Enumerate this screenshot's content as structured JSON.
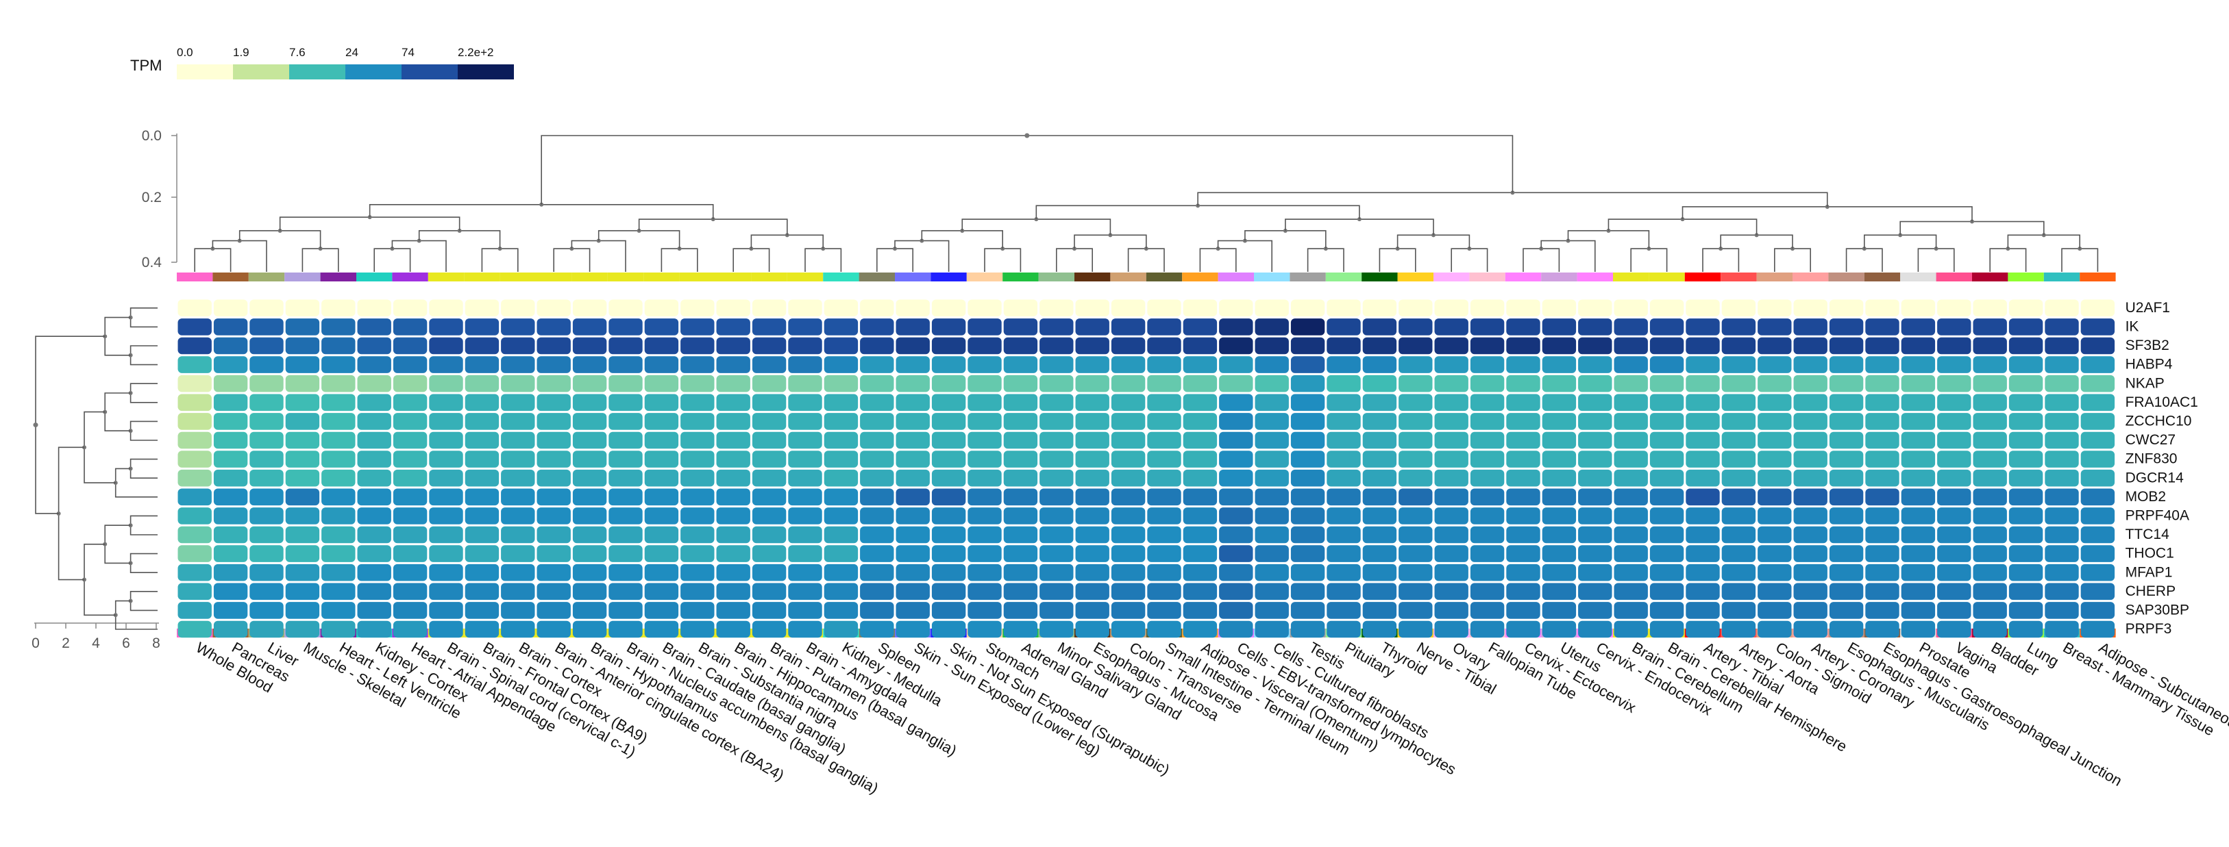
{
  "chart_data": {
    "type": "heatmap",
    "title": "",
    "legend": {
      "title": "TPM",
      "tick_labels": [
        "0.0",
        "1.9",
        "7.6",
        "24",
        "74",
        "2.2e+2"
      ],
      "colors": [
        "#ffffd6",
        "#c6e69b",
        "#3fbdb4",
        "#1f8dc0",
        "#1f4fa0",
        "#0b1c5a"
      ]
    },
    "top_dendrogram_axis": {
      "ticks": [
        "0.0",
        "0.2",
        "0.4"
      ]
    },
    "left_dendrogram_axis": {
      "ticks": [
        "0",
        "2",
        "4",
        "6",
        "8"
      ]
    },
    "genes": [
      "U2AF1",
      "IK",
      "SF3B2",
      "HABP4",
      "NKAP",
      "FRA10AC1",
      "ZCCHC10",
      "CWC27",
      "ZNF830",
      "DGCR14",
      "MOB2",
      "PRPF40A",
      "TTC14",
      "THOC1",
      "MFAP1",
      "CHERP",
      "SAP30BP",
      "PRPF3"
    ],
    "bracket_genes": [
      "FRA10AC1",
      "DGCR14"
    ],
    "tissues": [
      "Whole Blood",
      "Pancreas",
      "Liver",
      "Muscle - Skeletal",
      "Heart - Left Ventricle",
      "Kidney - Cortex",
      "Heart - Atrial Appendage",
      "Brain - Spinal cord (cervical c-1)",
      "Brain - Frontal Cortex (BA9)",
      "Brain - Cortex",
      "Brain - Anterior cingulate cortex (BA24)",
      "Brain - Hypothalamus",
      "Brain - Nucleus accumbens (basal ganglia)",
      "Brain - Caudate (basal ganglia)",
      "Brain - Substantia nigra",
      "Brain - Hippocampus",
      "Brain - Putamen (basal ganglia)",
      "Brain - Amygdala",
      "Kidney - Medulla",
      "Spleen",
      "Skin - Sun Exposed (Lower leg)",
      "Skin - Not Sun Exposed (Suprapubic)",
      "Stomach",
      "Adrenal Gland",
      "Minor Salivary Gland",
      "Esophagus - Mucosa",
      "Colon - Transverse",
      "Small Intestine - Terminal Ileum",
      "Adipose - Visceral (Omentum)",
      "Cells - EBV-transformed lymphocytes",
      "Cells - Cultured fibroblasts",
      "Testis",
      "Pituitary",
      "Thyroid",
      "Nerve - Tibial",
      "Ovary",
      "Fallopian Tube",
      "Cervix - Ectocervix",
      "Uterus",
      "Cervix - Endocervix",
      "Brain - Cerebellum",
      "Brain - Cerebellar Hemisphere",
      "Artery - Tibial",
      "Artery - Aorta",
      "Colon - Sigmoid",
      "Artery - Coronary",
      "Esophagus - Muscularis",
      "Esophagus - Gastroesophageal Junction",
      "Prostate",
      "Vagina",
      "Bladder",
      "Lung",
      "Breast - Mammary Tissue",
      "Adipose - Subcutaneous"
    ],
    "tissue_colors": [
      "#ff66cc",
      "#a06030",
      "#a0b070",
      "#b0a0e0",
      "#8020a0",
      "#20d0c0",
      "#a030e0",
      "#e8e820",
      "#e8e820",
      "#e8e820",
      "#e8e820",
      "#e8e820",
      "#e8e820",
      "#e8e820",
      "#e8e820",
      "#e8e820",
      "#e8e820",
      "#e8e820",
      "#30e0c0",
      "#808060",
      "#7070ff",
      "#2020ff",
      "#ffd0a0",
      "#20c040",
      "#90c090",
      "#603010",
      "#d0a070",
      "#606030",
      "#ffa020",
      "#e080ff",
      "#90e0ff",
      "#a0a0a0",
      "#90f090",
      "#006000",
      "#ffd020",
      "#ffb0ff",
      "#ffc0d0",
      "#ff80ff",
      "#d0a0e0",
      "#ff80ff",
      "#e8e820",
      "#e8e820",
      "#ff0000",
      "#ff5050",
      "#e0a080",
      "#ffa0a0",
      "#c09080",
      "#906040",
      "#e0e0e0",
      "#ff5090",
      "#b00030",
      "#90ff30",
      "#30c0c0",
      "#ff6010"
    ],
    "values": [
      [
        0,
        0,
        0,
        0,
        0,
        0,
        0,
        0,
        0,
        0,
        0,
        0,
        0,
        0,
        0,
        0,
        0,
        0,
        0,
        0,
        0,
        0,
        0,
        0,
        0,
        0,
        0,
        0,
        0,
        0,
        0,
        0,
        0,
        0,
        0,
        0,
        0,
        0,
        0,
        0,
        0,
        0,
        0,
        0,
        0,
        0,
        0,
        0,
        0,
        0,
        0,
        0,
        0,
        0
      ],
      [
        80,
        60,
        60,
        50,
        50,
        60,
        60,
        70,
        70,
        70,
        70,
        70,
        70,
        70,
        70,
        70,
        70,
        70,
        70,
        80,
        90,
        90,
        90,
        90,
        90,
        90,
        90,
        90,
        90,
        150,
        150,
        200,
        100,
        110,
        100,
        100,
        100,
        100,
        100,
        100,
        90,
        90,
        90,
        90,
        90,
        90,
        90,
        90,
        90,
        90,
        90,
        90,
        90,
        90
      ],
      [
        90,
        50,
        60,
        50,
        50,
        60,
        60,
        90,
        90,
        90,
        90,
        90,
        90,
        90,
        90,
        90,
        90,
        90,
        80,
        100,
        120,
        120,
        110,
        110,
        110,
        110,
        110,
        110,
        110,
        180,
        150,
        150,
        130,
        140,
        150,
        150,
        150,
        150,
        150,
        150,
        120,
        120,
        110,
        110,
        110,
        110,
        110,
        110,
        110,
        110,
        110,
        110,
        110,
        110
      ],
      [
        10,
        20,
        30,
        30,
        30,
        40,
        40,
        40,
        40,
        40,
        40,
        40,
        40,
        40,
        40,
        40,
        40,
        40,
        30,
        20,
        20,
        20,
        20,
        20,
        20,
        20,
        20,
        20,
        20,
        20,
        30,
        60,
        30,
        30,
        20,
        20,
        20,
        20,
        20,
        20,
        30,
        30,
        20,
        20,
        20,
        20,
        20,
        20,
        20,
        20,
        20,
        20,
        20,
        20
      ],
      [
        1,
        4,
        4,
        4,
        4,
        4,
        4,
        5,
        5,
        5,
        5,
        5,
        5,
        5,
        5,
        5,
        5,
        5,
        5,
        6,
        6,
        6,
        6,
        6,
        6,
        6,
        6,
        6,
        6,
        6,
        7,
        20,
        8,
        8,
        7,
        7,
        7,
        7,
        7,
        7,
        6,
        6,
        6,
        6,
        6,
        6,
        6,
        6,
        6,
        6,
        6,
        6,
        6,
        6
      ],
      [
        2,
        10,
        8,
        8,
        8,
        12,
        10,
        12,
        12,
        12,
        12,
        12,
        12,
        12,
        12,
        12,
        12,
        12,
        12,
        12,
        12,
        12,
        12,
        12,
        12,
        12,
        12,
        12,
        12,
        24,
        16,
        24,
        14,
        14,
        12,
        12,
        12,
        12,
        12,
        12,
        12,
        12,
        12,
        12,
        12,
        12,
        12,
        12,
        12,
        12,
        12,
        12,
        12,
        12
      ],
      [
        2,
        8,
        8,
        12,
        8,
        12,
        10,
        12,
        12,
        12,
        12,
        12,
        12,
        12,
        12,
        12,
        12,
        12,
        12,
        12,
        12,
        12,
        12,
        12,
        12,
        12,
        12,
        12,
        12,
        30,
        20,
        24,
        14,
        14,
        12,
        12,
        12,
        12,
        12,
        12,
        12,
        12,
        12,
        12,
        12,
        12,
        12,
        12,
        12,
        12,
        12,
        12,
        12,
        12
      ],
      [
        3,
        8,
        8,
        8,
        8,
        12,
        10,
        12,
        12,
        12,
        12,
        12,
        12,
        12,
        12,
        12,
        12,
        12,
        12,
        12,
        12,
        12,
        12,
        12,
        12,
        12,
        12,
        12,
        12,
        30,
        20,
        24,
        14,
        14,
        12,
        12,
        12,
        12,
        12,
        12,
        12,
        12,
        12,
        12,
        12,
        12,
        12,
        12,
        12,
        12,
        12,
        12,
        12,
        12
      ],
      [
        3,
        8,
        10,
        8,
        8,
        12,
        10,
        12,
        12,
        12,
        12,
        12,
        12,
        12,
        12,
        12,
        12,
        12,
        12,
        12,
        12,
        12,
        12,
        12,
        12,
        12,
        12,
        12,
        12,
        24,
        16,
        24,
        14,
        14,
        12,
        12,
        12,
        12,
        12,
        12,
        12,
        12,
        12,
        12,
        12,
        12,
        12,
        12,
        12,
        12,
        12,
        12,
        12,
        12
      ],
      [
        4,
        12,
        10,
        8,
        8,
        12,
        10,
        14,
        14,
        14,
        14,
        14,
        14,
        14,
        14,
        14,
        14,
        14,
        12,
        14,
        14,
        14,
        14,
        14,
        14,
        14,
        14,
        14,
        14,
        24,
        20,
        30,
        16,
        16,
        14,
        14,
        14,
        14,
        14,
        14,
        14,
        14,
        14,
        14,
        14,
        14,
        14,
        14,
        14,
        14,
        14,
        14,
        14,
        14
      ],
      [
        20,
        24,
        24,
        40,
        24,
        24,
        24,
        24,
        24,
        24,
        24,
        24,
        24,
        24,
        24,
        24,
        24,
        24,
        24,
        40,
        60,
        60,
        40,
        40,
        40,
        40,
        40,
        40,
        40,
        40,
        40,
        40,
        40,
        40,
        50,
        40,
        40,
        40,
        40,
        40,
        40,
        40,
        70,
        60,
        60,
        60,
        60,
        60,
        40,
        40,
        40,
        40,
        40,
        40
      ],
      [
        12,
        20,
        20,
        20,
        20,
        24,
        24,
        24,
        24,
        24,
        24,
        24,
        24,
        24,
        24,
        24,
        24,
        24,
        24,
        30,
        30,
        30,
        30,
        30,
        30,
        30,
        30,
        30,
        30,
        50,
        40,
        40,
        30,
        30,
        30,
        30,
        30,
        30,
        30,
        30,
        30,
        30,
        30,
        30,
        30,
        30,
        30,
        30,
        30,
        30,
        30,
        30,
        30,
        30
      ],
      [
        6,
        12,
        12,
        12,
        12,
        16,
        16,
        16,
        16,
        16,
        16,
        16,
        16,
        16,
        16,
        16,
        16,
        16,
        16,
        24,
        24,
        24,
        24,
        24,
        24,
        24,
        24,
        24,
        24,
        40,
        30,
        40,
        30,
        30,
        30,
        30,
        30,
        30,
        30,
        30,
        30,
        30,
        30,
        30,
        30,
        30,
        30,
        30,
        30,
        30,
        30,
        30,
        30,
        30
      ],
      [
        5,
        10,
        10,
        10,
        10,
        14,
        14,
        14,
        14,
        14,
        14,
        14,
        14,
        14,
        14,
        14,
        14,
        14,
        14,
        24,
        24,
        24,
        24,
        24,
        24,
        24,
        24,
        24,
        24,
        60,
        40,
        40,
        30,
        30,
        30,
        30,
        30,
        30,
        30,
        30,
        30,
        30,
        30,
        30,
        30,
        30,
        30,
        30,
        30,
        30,
        30,
        30,
        30,
        30
      ],
      [
        14,
        20,
        20,
        20,
        20,
        24,
        24,
        24,
        24,
        24,
        24,
        24,
        24,
        24,
        24,
        24,
        24,
        24,
        24,
        30,
        30,
        30,
        30,
        30,
        30,
        30,
        30,
        30,
        30,
        40,
        30,
        30,
        30,
        30,
        30,
        30,
        30,
        30,
        30,
        30,
        30,
        30,
        30,
        30,
        30,
        30,
        30,
        30,
        30,
        30,
        30,
        30,
        30,
        30
      ],
      [
        14,
        24,
        24,
        24,
        24,
        30,
        30,
        30,
        30,
        30,
        30,
        30,
        30,
        30,
        30,
        30,
        30,
        30,
        30,
        40,
        40,
        40,
        40,
        40,
        40,
        40,
        40,
        40,
        40,
        50,
        40,
        40,
        40,
        40,
        40,
        40,
        40,
        40,
        40,
        40,
        40,
        40,
        40,
        40,
        40,
        40,
        40,
        40,
        40,
        40,
        40,
        40,
        40,
        40
      ],
      [
        16,
        24,
        24,
        24,
        24,
        30,
        30,
        30,
        30,
        30,
        30,
        30,
        30,
        30,
        30,
        30,
        30,
        30,
        30,
        40,
        40,
        40,
        40,
        40,
        40,
        40,
        40,
        40,
        40,
        50,
        40,
        40,
        40,
        40,
        40,
        40,
        40,
        40,
        40,
        40,
        40,
        40,
        40,
        40,
        40,
        40,
        40,
        40,
        40,
        40,
        40,
        40,
        40,
        40
      ],
      [
        10,
        16,
        16,
        16,
        16,
        20,
        20,
        24,
        24,
        24,
        24,
        24,
        24,
        24,
        24,
        24,
        24,
        24,
        20,
        24,
        24,
        24,
        24,
        24,
        24,
        24,
        24,
        24,
        24,
        30,
        30,
        30,
        30,
        30,
        30,
        30,
        30,
        30,
        30,
        30,
        30,
        30,
        30,
        30,
        30,
        30,
        30,
        30,
        30,
        30,
        30,
        30,
        30,
        30
      ]
    ]
  }
}
